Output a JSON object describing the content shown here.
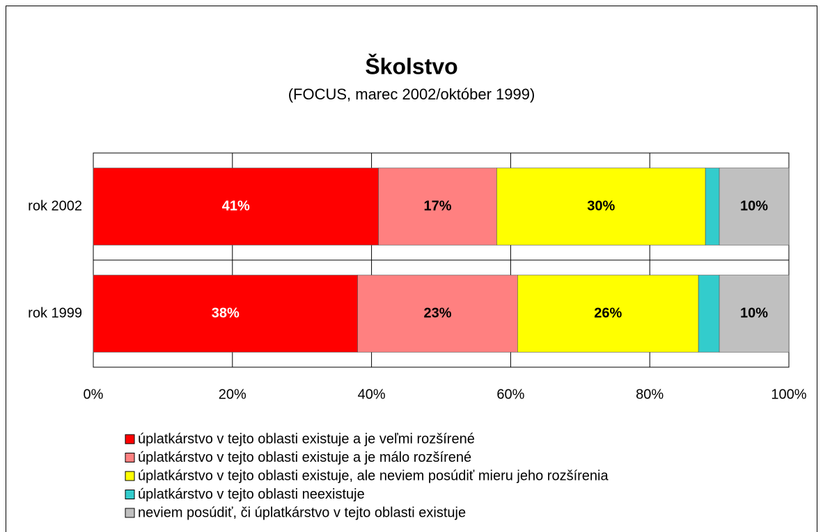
{
  "chart_data": {
    "type": "stacked_bar_horizontal",
    "title": "Školstvo",
    "subtitle": "(FOCUS, marec 2002/október 1999)",
    "categories": [
      "rok 2002",
      "rok 1999"
    ],
    "series": [
      {
        "name": "úplatkárstvo v tejto oblasti existuje a je veľmi rozšírené",
        "color": "#ff0000",
        "label_color": "#ffffff",
        "values": [
          41,
          38
        ],
        "value_labels": [
          "41%",
          "38%"
        ]
      },
      {
        "name": "úplatkárstvo v tejto oblasti existuje a je málo rozšírené",
        "color": "#ff8080",
        "label_color": "#000000",
        "values": [
          17,
          23
        ],
        "value_labels": [
          "17%",
          "23%"
        ]
      },
      {
        "name": "úplatkárstvo v tejto oblasti existuje, ale neviem posúdiť mieru jeho rozšírenia",
        "color": "#ffff00",
        "label_color": "#000000",
        "values": [
          30,
          26
        ],
        "value_labels": [
          "30%",
          "26%"
        ]
      },
      {
        "name": "úplatkárstvo v tejto oblasti neexistuje",
        "color": "#33cccc",
        "values": [
          2,
          3
        ]
      },
      {
        "name": "neviem posúdiť, či úplatkárstvo v tejto oblasti existuje",
        "color": "#c0c0c0",
        "label_color": "#000000",
        "values": [
          10,
          10
        ],
        "value_labels": [
          "10%",
          "10%"
        ]
      }
    ],
    "xlim": [
      0,
      100
    ],
    "xticks": [
      {
        "value": 0,
        "label": "0%"
      },
      {
        "value": 20,
        "label": "20%"
      },
      {
        "value": 40,
        "label": "40%"
      },
      {
        "value": 60,
        "label": "60%"
      },
      {
        "value": 80,
        "label": "80%"
      },
      {
        "value": 100,
        "label": "100%"
      }
    ],
    "grid": true
  }
}
